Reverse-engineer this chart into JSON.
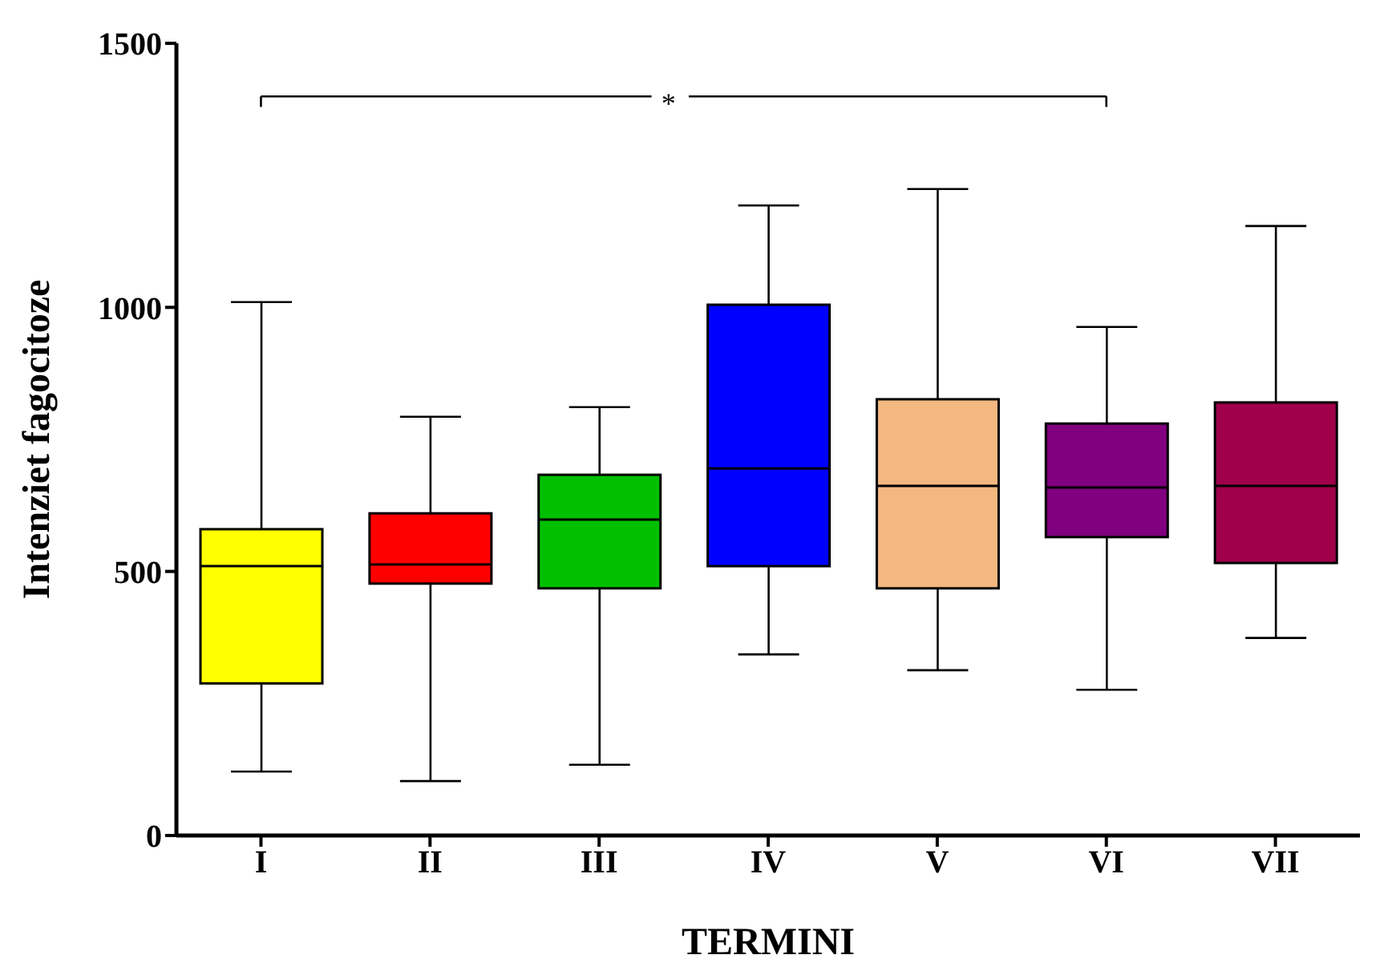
{
  "chart_data": {
    "type": "box",
    "xlabel": "TERMINI",
    "ylabel": "Intenziet fagocitoze",
    "categories": [
      "I",
      "II",
      "III",
      "IV",
      "V",
      "VI",
      "VII"
    ],
    "colors": [
      "#ffff00",
      "#ff0000",
      "#00c000",
      "#0000ff",
      "#f2b880",
      "#800080",
      "#a0004a"
    ],
    "boxes": [
      {
        "low": 121,
        "q1": 288,
        "median": 510,
        "q3": 580,
        "high": 1010
      },
      {
        "low": 103,
        "q1": 477,
        "median": 513,
        "q3": 610,
        "high": 793
      },
      {
        "low": 134,
        "q1": 468,
        "median": 598,
        "q3": 683,
        "high": 811
      },
      {
        "low": 343,
        "q1": 510,
        "median": 695,
        "q3": 1005,
        "high": 1193
      },
      {
        "low": 313,
        "q1": 468,
        "median": 662,
        "q3": 826,
        "high": 1224
      },
      {
        "low": 276,
        "q1": 565,
        "median": 659,
        "q3": 780,
        "high": 963
      },
      {
        "low": 374,
        "q1": 516,
        "median": 662,
        "q3": 820,
        "high": 1154
      }
    ],
    "ylim": [
      0,
      1500
    ],
    "yticks": [
      0,
      500,
      1000,
      1500
    ],
    "annotations": [
      "*"
    ]
  }
}
